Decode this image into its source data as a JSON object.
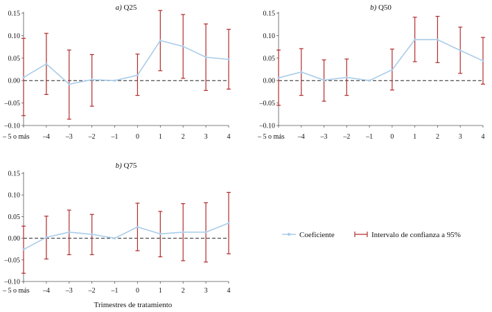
{
  "colors": {
    "coef": "#a9cbe8",
    "ci": "#b22a2a",
    "axis": "#555555",
    "zero": "#222222"
  },
  "legend": {
    "coef_label": "Coeficiente",
    "ci_label": "Intervalo de confianza a 95%"
  },
  "xlabel_shared": "Trimestres de tratamiento",
  "chart_data": [
    {
      "type": "line",
      "title_prefix": "a)",
      "title": "Q25",
      "categories": [
        "– 5 o más",
        "–4",
        "–3",
        "–2",
        "–1",
        "0",
        "1",
        "2",
        "3",
        "4"
      ],
      "ylim": [
        -0.1,
        0.15
      ],
      "yticks": [
        -0.1,
        -0.05,
        0.0,
        0.05,
        0.1,
        0.15
      ],
      "ytick_labels": [
        "–0.10",
        "–0.05",
        "0.00",
        "0.05",
        "0.10",
        "0.15"
      ],
      "coef": [
        0.007,
        0.037,
        -0.008,
        0.002,
        0.0,
        0.012,
        0.089,
        0.076,
        0.052,
        0.047
      ],
      "ci_low": [
        -0.078,
        -0.031,
        -0.086,
        -0.057,
        0.0,
        -0.033,
        0.022,
        0.005,
        -0.022,
        -0.019
      ],
      "ci_high": [
        0.094,
        0.105,
        0.068,
        0.058,
        0.0,
        0.059,
        0.156,
        0.147,
        0.126,
        0.114
      ]
    },
    {
      "type": "line",
      "title_prefix": "b)",
      "title": "Q50",
      "categories": [
        "– 5 o más",
        "–4",
        "–3",
        "–2",
        "–1",
        "0",
        "1",
        "2",
        "3",
        "4"
      ],
      "ylim": [
        -0.1,
        0.15
      ],
      "yticks": [
        -0.1,
        -0.05,
        0.0,
        0.05,
        0.1,
        0.15
      ],
      "ytick_labels": [
        "–0.10",
        "–0.05",
        "0.00",
        "0.05",
        "0.10",
        "0.15"
      ],
      "coef": [
        0.006,
        0.019,
        0.001,
        0.007,
        0.0,
        0.024,
        0.091,
        0.091,
        0.067,
        0.044
      ],
      "ci_low": [
        -0.055,
        -0.033,
        -0.046,
        -0.033,
        0.0,
        -0.021,
        0.042,
        0.04,
        0.016,
        -0.008
      ],
      "ci_high": [
        0.068,
        0.071,
        0.046,
        0.048,
        0.0,
        0.07,
        0.141,
        0.143,
        0.119,
        0.096
      ]
    },
    {
      "type": "line",
      "title_prefix": "b)",
      "title": "Q75",
      "categories": [
        "– 5 o más",
        "–4",
        "–3",
        "–2",
        "–1",
        "0",
        "1",
        "2",
        "3",
        "4"
      ],
      "ylim": [
        -0.1,
        0.15
      ],
      "yticks": [
        -0.1,
        -0.05,
        0.0,
        0.05,
        0.1,
        0.15
      ],
      "ytick_labels": [
        "–0.10",
        "–0.05",
        "0.00",
        "0.05",
        "0.10",
        "0.15"
      ],
      "coef": [
        -0.026,
        0.002,
        0.014,
        0.009,
        0.0,
        0.026,
        0.01,
        0.014,
        0.014,
        0.035
      ],
      "ci_low": [
        -0.081,
        -0.048,
        -0.038,
        -0.038,
        0.0,
        -0.029,
        -0.043,
        -0.052,
        -0.055,
        -0.036
      ],
      "ci_high": [
        0.028,
        0.051,
        0.065,
        0.055,
        0.0,
        0.081,
        0.062,
        0.08,
        0.082,
        0.106
      ]
    }
  ]
}
